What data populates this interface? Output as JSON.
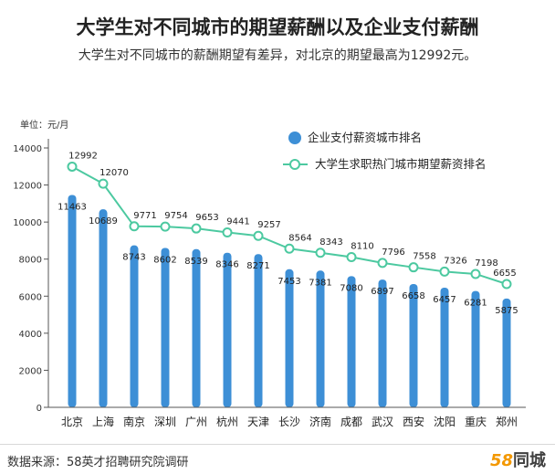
{
  "header": {
    "title": "大学生对不同城市的期望薪酬以及企业支付薪酬",
    "subtitle": "大学生对不同城市的薪酬期望有差异，对北京的期望最高为12992元。"
  },
  "footer": {
    "source": "数据来源：58英才招聘研究院调研",
    "logo_number": "58",
    "logo_text": "同城"
  },
  "colors": {
    "bar": "#3d8fd6",
    "bar_dark": "#2a72b8",
    "line": "#4cc9a0",
    "marker_fill": "#ffffff"
  },
  "chart_data": {
    "type": "bar",
    "unit_label": "单位：元/月",
    "categories": [
      "北京",
      "上海",
      "南京",
      "深圳",
      "广州",
      "杭州",
      "天津",
      "长沙",
      "济南",
      "成都",
      "武汉",
      "西安",
      "沈阳",
      "重庆",
      "郑州"
    ],
    "series": [
      {
        "name": "企业支付薪资城市排名",
        "type": "bar",
        "values": [
          11463,
          10689,
          8743,
          8602,
          8539,
          8346,
          8271,
          7453,
          7381,
          7080,
          6897,
          6658,
          6457,
          6281,
          5875
        ]
      },
      {
        "name": "大学生求职热门城市期望薪资排名",
        "type": "line",
        "values": [
          12992,
          12070,
          9771,
          9754,
          9653,
          9441,
          9257,
          8564,
          8343,
          8110,
          7796,
          7558,
          7326,
          7198,
          6655
        ]
      }
    ],
    "y_ticks": [
      "0",
      "2000",
      "4000",
      "6000",
      "8000",
      "10000",
      "12000",
      "14000"
    ],
    "ylim": [
      0,
      14000
    ],
    "legend_position": "top-right",
    "grid": false
  }
}
